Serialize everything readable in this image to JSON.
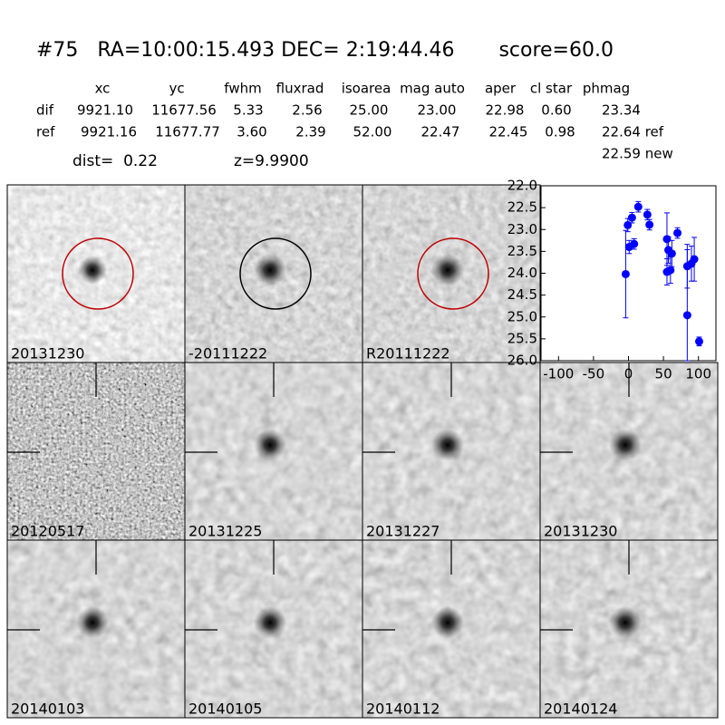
{
  "header": {
    "title": "#75   RA=10:00:15.493 DEC= 2:19:44.46       score=60.0",
    "columns": [
      "xc",
      "yc",
      "fwhm",
      "fluxrad",
      "isoarea",
      "mag auto",
      "aper",
      "cl star",
      "phmag"
    ],
    "rows": [
      {
        "label": "dif",
        "cells": [
          "9921.10",
          "11677.56",
          "5.33",
          "2.56",
          "25.00",
          "23.00",
          "22.98",
          "0.60",
          "23.34"
        ]
      },
      {
        "label": "ref",
        "cells": [
          "9921.16",
          "11677.77",
          "3.60",
          "2.39",
          "52.00",
          "22.47",
          "22.45",
          "0.98",
          "22.64 ref"
        ]
      }
    ],
    "new_mag": "22.59 new",
    "dist": "dist=  0.22",
    "z": "z=9.9900"
  },
  "stamps": [
    {
      "label": "20131230",
      "circle": "#c00000"
    },
    {
      "label": "-20111222",
      "circle": "#000000"
    },
    {
      "label": "R20111222",
      "circle": "#c00000"
    },
    {
      "label": "20120517"
    },
    {
      "label": "20131225"
    },
    {
      "label": "20131227"
    },
    {
      "label": "20131230",
      "label_color": "#ff0000"
    },
    {
      "label": "20140103"
    },
    {
      "label": "20140105"
    },
    {
      "label": "20140112"
    },
    {
      "label": "20140124"
    }
  ],
  "chart_data": {
    "type": "scatter",
    "color": "#0000ff",
    "x": [
      -4,
      -1,
      1,
      5,
      8,
      14,
      27,
      30,
      55,
      55,
      57,
      60,
      62,
      70,
      84,
      84,
      90,
      94,
      101
    ],
    "values": [
      24.02,
      22.9,
      23.4,
      22.73,
      23.33,
      22.48,
      22.66,
      22.89,
      23.22,
      23.97,
      23.47,
      23.93,
      23.55,
      23.08,
      24.96,
      23.84,
      23.78,
      23.68,
      25.56
    ],
    "errors": [
      1.0,
      0.15,
      0.15,
      0.12,
      0.12,
      0.12,
      0.12,
      0.12,
      0.6,
      0.3,
      0.3,
      0.3,
      0.3,
      0.12,
      1.5,
      0.5,
      0.4,
      0.5,
      0.1
    ],
    "xlim": [
      -125,
      125
    ],
    "ylim": [
      26.0,
      22.0
    ],
    "xticks": [
      -100,
      -50,
      0,
      50,
      100
    ],
    "yticks": [
      {
        "value": 22.0,
        "label": "22.0"
      },
      {
        "value": 22.5,
        "label": "22.5"
      },
      {
        "value": 23.0,
        "label": "23.0"
      },
      {
        "value": 23.5,
        "label": "23.5"
      },
      {
        "value": 24.0,
        "label": "24.0"
      },
      {
        "value": 24.5,
        "label": "24.5"
      },
      {
        "value": 25.0,
        "label": "25.0"
      },
      {
        "value": 25.5,
        "label": "25.5"
      },
      {
        "value": 26.0,
        "label": "26.0"
      }
    ]
  }
}
